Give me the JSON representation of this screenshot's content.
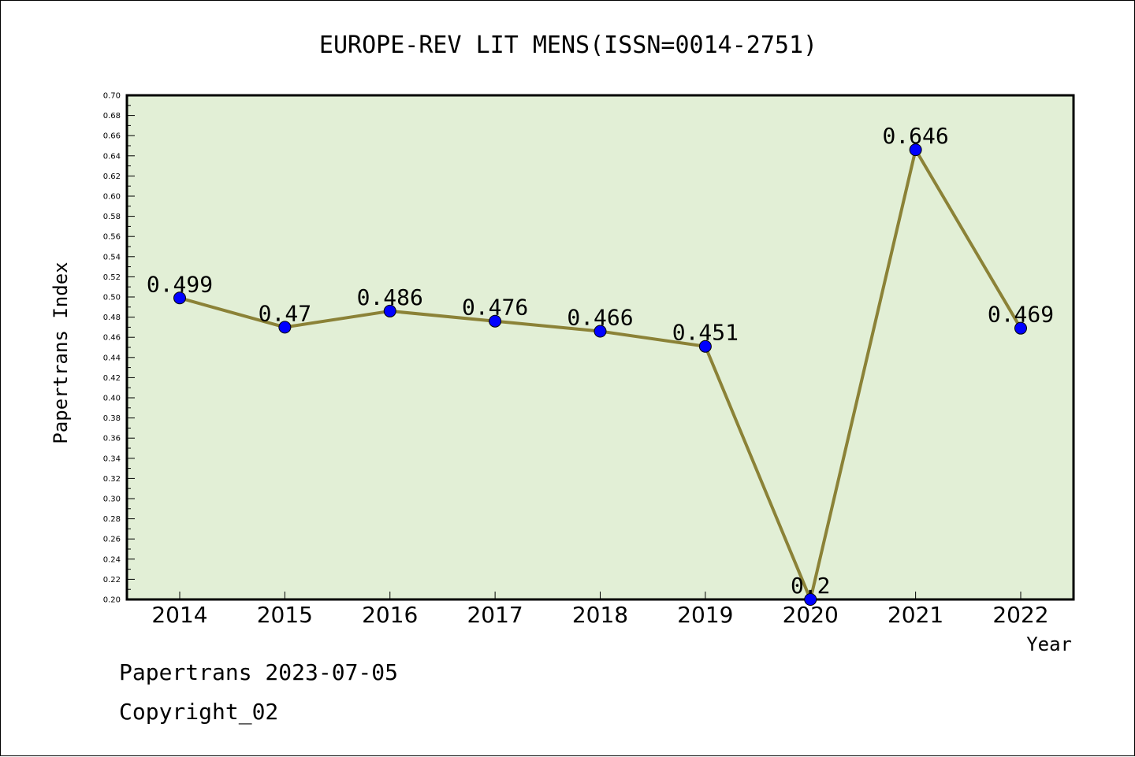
{
  "chart_data": {
    "type": "line",
    "title": "EUROPE-REV LIT MENS(ISSN=0014-2751)",
    "xlabel": "Year",
    "ylabel": "Papertrans Index",
    "categories": [
      "2014",
      "2015",
      "2016",
      "2017",
      "2018",
      "2019",
      "2020",
      "2021",
      "2022"
    ],
    "series": [
      {
        "values": [
          0.499,
          0.47,
          0.486,
          0.476,
          0.466,
          0.451,
          0.2,
          0.646,
          0.469
        ],
        "labels": [
          "0.499",
          "0.47",
          "0.486",
          "0.476",
          "0.466",
          "0.451",
          "0.2",
          "0.646",
          "0.469"
        ]
      }
    ],
    "ylim": [
      0.2,
      0.7
    ],
    "yticks": [
      "0.20",
      "0.22",
      "0.24",
      "0.26",
      "0.28",
      "0.30",
      "0.32",
      "0.34",
      "0.36",
      "0.38",
      "0.40",
      "0.42",
      "0.44",
      "0.46",
      "0.48",
      "0.50",
      "0.52",
      "0.54",
      "0.56",
      "0.58",
      "0.60",
      "0.62",
      "0.64",
      "0.66",
      "0.68",
      "0.70"
    ],
    "grid": false,
    "colors": {
      "plot_bg": "#e2efd6",
      "line": "#8b8237",
      "marker": "#0000ff"
    }
  },
  "footer": {
    "line1": "Papertrans 2023-07-05",
    "line2": "Copyright_02"
  }
}
